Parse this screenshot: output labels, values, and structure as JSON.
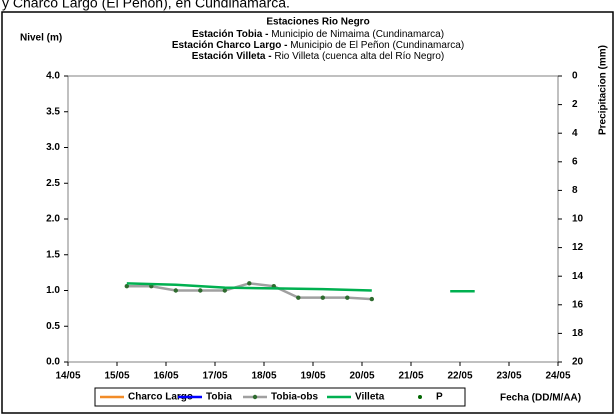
{
  "caption_fragment": "y Charco Largo (El Peñon), en Cundinamarca.",
  "chart_data": {
    "type": "line",
    "title": "Estaciones Rio Negro",
    "subtitle_lines": [
      {
        "station": "Estación Tobia -",
        "detail": "Municipio de Nimaima (Cundinamarca)"
      },
      {
        "station": "Estación Charco Largo -",
        "detail": "Municipio de El Peñon (Cundinamarca)"
      },
      {
        "station": "Estación Villeta -",
        "detail": "Rio Villeta (cuenca alta del Río Negro)"
      }
    ],
    "y_label": "Nivel (m)",
    "y2_label": "Precipitacion (mm)",
    "x_label": "Fecha (DD/M/AA)",
    "xlim": [
      14,
      24
    ],
    "xticks": [
      {
        "value": 14,
        "label": "14/05"
      },
      {
        "value": 15,
        "label": "15/05"
      },
      {
        "value": 16,
        "label": "16/05"
      },
      {
        "value": 17,
        "label": "17/05"
      },
      {
        "value": 18,
        "label": "18/05"
      },
      {
        "value": 19,
        "label": "19/05"
      },
      {
        "value": 20,
        "label": "20/05"
      },
      {
        "value": 21,
        "label": "21/05"
      },
      {
        "value": 22,
        "label": "22/05"
      },
      {
        "value": 23,
        "label": "23/05"
      },
      {
        "value": 24,
        "label": "24/05"
      }
    ],
    "ylim": [
      0,
      4
    ],
    "yticks": [
      {
        "value": 0,
        "label": "0.0"
      },
      {
        "value": 0.5,
        "label": "0.5"
      },
      {
        "value": 1,
        "label": "1.0"
      },
      {
        "value": 1.5,
        "label": "1.5"
      },
      {
        "value": 2,
        "label": "2.0"
      },
      {
        "value": 2.5,
        "label": "2.5"
      },
      {
        "value": 3,
        "label": "3.0"
      },
      {
        "value": 3.5,
        "label": "3.5"
      },
      {
        "value": 4,
        "label": "4.0"
      }
    ],
    "y2lim": [
      0,
      20
    ],
    "y2_inverted": true,
    "y2ticks": [
      0,
      2,
      4,
      6,
      8,
      10,
      12,
      14,
      16,
      18,
      20
    ],
    "grid": false,
    "series": [
      {
        "name": "Charco Largo",
        "color": "#f28c28",
        "x": [],
        "values": []
      },
      {
        "name": "Tobia",
        "color": "#0000ff",
        "x": [],
        "values": []
      },
      {
        "name": "Tobia-obs",
        "color": "#a0a0a0",
        "marker_color": "#2f6b2f",
        "x": [
          15.2,
          15.7,
          16.2,
          16.7,
          17.2,
          17.7,
          18.2,
          18.7,
          19.2,
          19.7,
          20.2
        ],
        "values": [
          1.06,
          1.06,
          1.0,
          1.0,
          1.0,
          1.1,
          1.06,
          0.9,
          0.9,
          0.9,
          0.88
        ]
      },
      {
        "name": "Villeta",
        "color": "#00b050",
        "x": [
          15.2,
          16.2,
          17.2,
          18.2,
          19.2,
          20.2,
          21,
          21.8,
          22.3
        ],
        "values": [
          1.1,
          1.08,
          1.04,
          1.03,
          1.02,
          1.0,
          null,
          0.99,
          0.99
        ]
      },
      {
        "name": "P",
        "color": "#006600",
        "axis": "y2",
        "marker_only": true,
        "x": [],
        "values": []
      }
    ]
  }
}
